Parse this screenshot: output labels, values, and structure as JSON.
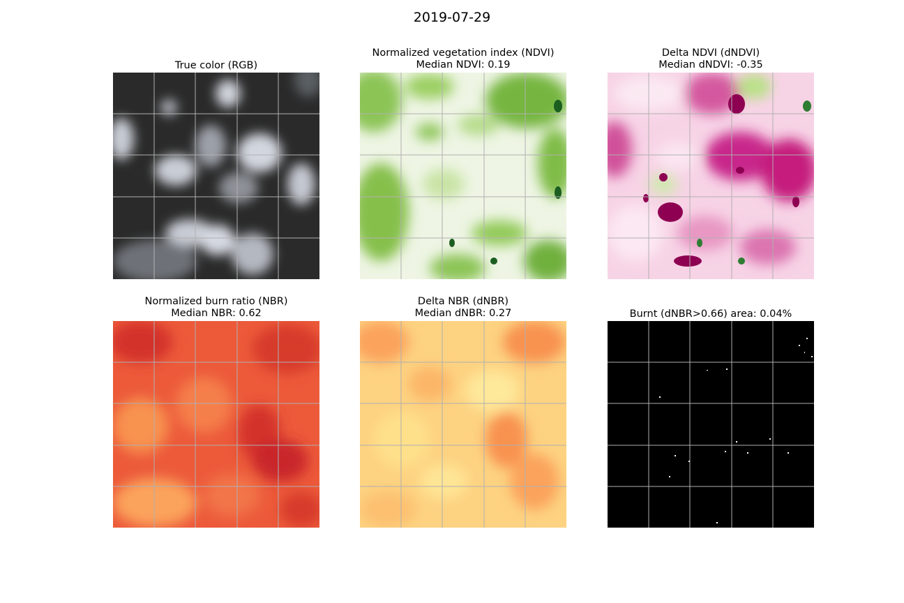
{
  "figure": {
    "title": "2019-07-29"
  },
  "panels": [
    {
      "id": "rgb",
      "title_line1": "True color (RGB)",
      "title_line2": "",
      "colors": [
        "#1f1f1f",
        "#3a3a3a",
        "#b8bcc4"
      ]
    },
    {
      "id": "ndvi",
      "title_line1": "Normalized vegetation index (NDVI)",
      "title_line2": "Median NDVI: 0.19",
      "colors": [
        "#f4f7ef",
        "#a6d469",
        "#4d9221",
        "#1b5e20"
      ]
    },
    {
      "id": "dndvi",
      "title_line1": "Delta NDVI (dNDVI)",
      "title_line2": "Median dNDVI: -0.35",
      "colors": [
        "#fbe6f1",
        "#e48bbd",
        "#c51b7d",
        "#8e0152",
        "#b8e186"
      ]
    },
    {
      "id": "nbr",
      "title_line1": "Normalized burn ratio (NBR)",
      "title_line2": "Median NBR: 0.62",
      "colors": [
        "#d62f27",
        "#f46d43",
        "#fdae61"
      ]
    },
    {
      "id": "dnbr",
      "title_line1": "Delta NBR (dNBR)",
      "title_line2": "Median dNBR: 0.27",
      "colors": [
        "#fee08b",
        "#fdae61",
        "#f8824c"
      ]
    },
    {
      "id": "burnt",
      "title_line1": "Burnt (dNBR>0.66) area: 0.04%",
      "title_line2": "",
      "colors": [
        "#000000",
        "#ffffff"
      ]
    }
  ]
}
